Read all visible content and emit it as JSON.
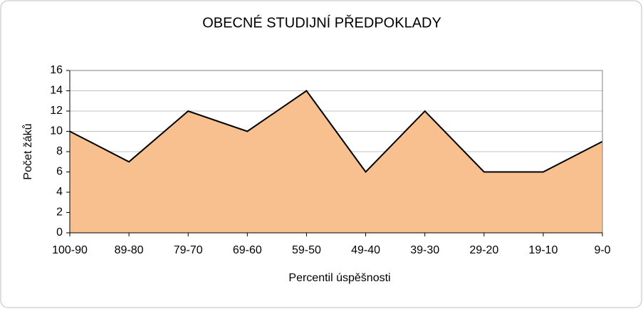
{
  "chart_data": {
    "type": "area",
    "title": "OBECNÉ STUDIJNÍ PŘEDPOKLADY",
    "x_label": "Percentil úspěšnosti",
    "y_label": "Počet žáků",
    "categories": [
      "100-90",
      "89-80",
      "79-70",
      "69-60",
      "59-50",
      "49-40",
      "39-30",
      "29-20",
      "19-10",
      "9-0"
    ],
    "values": [
      10,
      7,
      12,
      10,
      14,
      6,
      12,
      6,
      6,
      9
    ],
    "color": "#f9c08f",
    "line_color": "#000000",
    "ylim": [
      0,
      16
    ],
    "yticks": [
      0,
      2,
      4,
      6,
      8,
      10,
      12,
      14,
      16
    ],
    "grid": true
  }
}
